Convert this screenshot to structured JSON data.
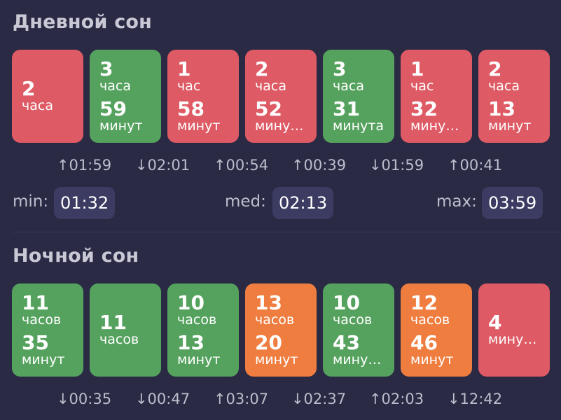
{
  "day": {
    "title": "Дневной сон",
    "cards": [
      {
        "color": "red",
        "l1": "2",
        "l2": "часа",
        "l3": "",
        "l4": ""
      },
      {
        "color": "green",
        "l1": "3",
        "l2": "часа",
        "l3": "59",
        "l4": "минут"
      },
      {
        "color": "red",
        "l1": "1",
        "l2": "час",
        "l3": "58",
        "l4": "минут"
      },
      {
        "color": "red",
        "l1": "2",
        "l2": "часа",
        "l3": "52",
        "l4": "мину…"
      },
      {
        "color": "green",
        "l1": "3",
        "l2": "часа",
        "l3": "31",
        "l4": "минута"
      },
      {
        "color": "red",
        "l1": "1",
        "l2": "час",
        "l3": "32",
        "l4": "мину…"
      },
      {
        "color": "red",
        "l1": "2",
        "l2": "часа",
        "l3": "13",
        "l4": "минут"
      }
    ],
    "deltas": [
      "↑01:59",
      "↓02:01",
      "↑00:54",
      "↑00:39",
      "↓01:59",
      "↑00:41"
    ],
    "stats": {
      "min_label": "min:",
      "min_value": "01:32",
      "med_label": "med:",
      "med_value": "02:13",
      "max_label": "max:",
      "max_value": "03:59"
    }
  },
  "night": {
    "title": "Ночной сон",
    "cards": [
      {
        "color": "green",
        "l1": "11",
        "l2": "часов",
        "l3": "35",
        "l4": "минут"
      },
      {
        "color": "green",
        "l1": "11",
        "l2": "часов",
        "l3": "",
        "l4": ""
      },
      {
        "color": "green",
        "l1": "10",
        "l2": "часов",
        "l3": "13",
        "l4": "минут"
      },
      {
        "color": "orange",
        "l1": "13",
        "l2": "часов",
        "l3": "20",
        "l4": "минут"
      },
      {
        "color": "green",
        "l1": "10",
        "l2": "часов",
        "l3": "43",
        "l4": "мину…"
      },
      {
        "color": "orange",
        "l1": "12",
        "l2": "часов",
        "l3": "46",
        "l4": "минут"
      },
      {
        "color": "red",
        "l1": "4",
        "l2": "мину…",
        "l3": "",
        "l4": ""
      }
    ],
    "deltas": [
      "↓00:35",
      "↓00:47",
      "↑03:07",
      "↓02:37",
      "↑02:03",
      "↓12:42"
    ]
  },
  "colors": {
    "red": "#de5a64",
    "green": "#55a25e",
    "orange": "#ee7d3f",
    "background": "#2a2a45",
    "pill": "#3c3c63"
  }
}
